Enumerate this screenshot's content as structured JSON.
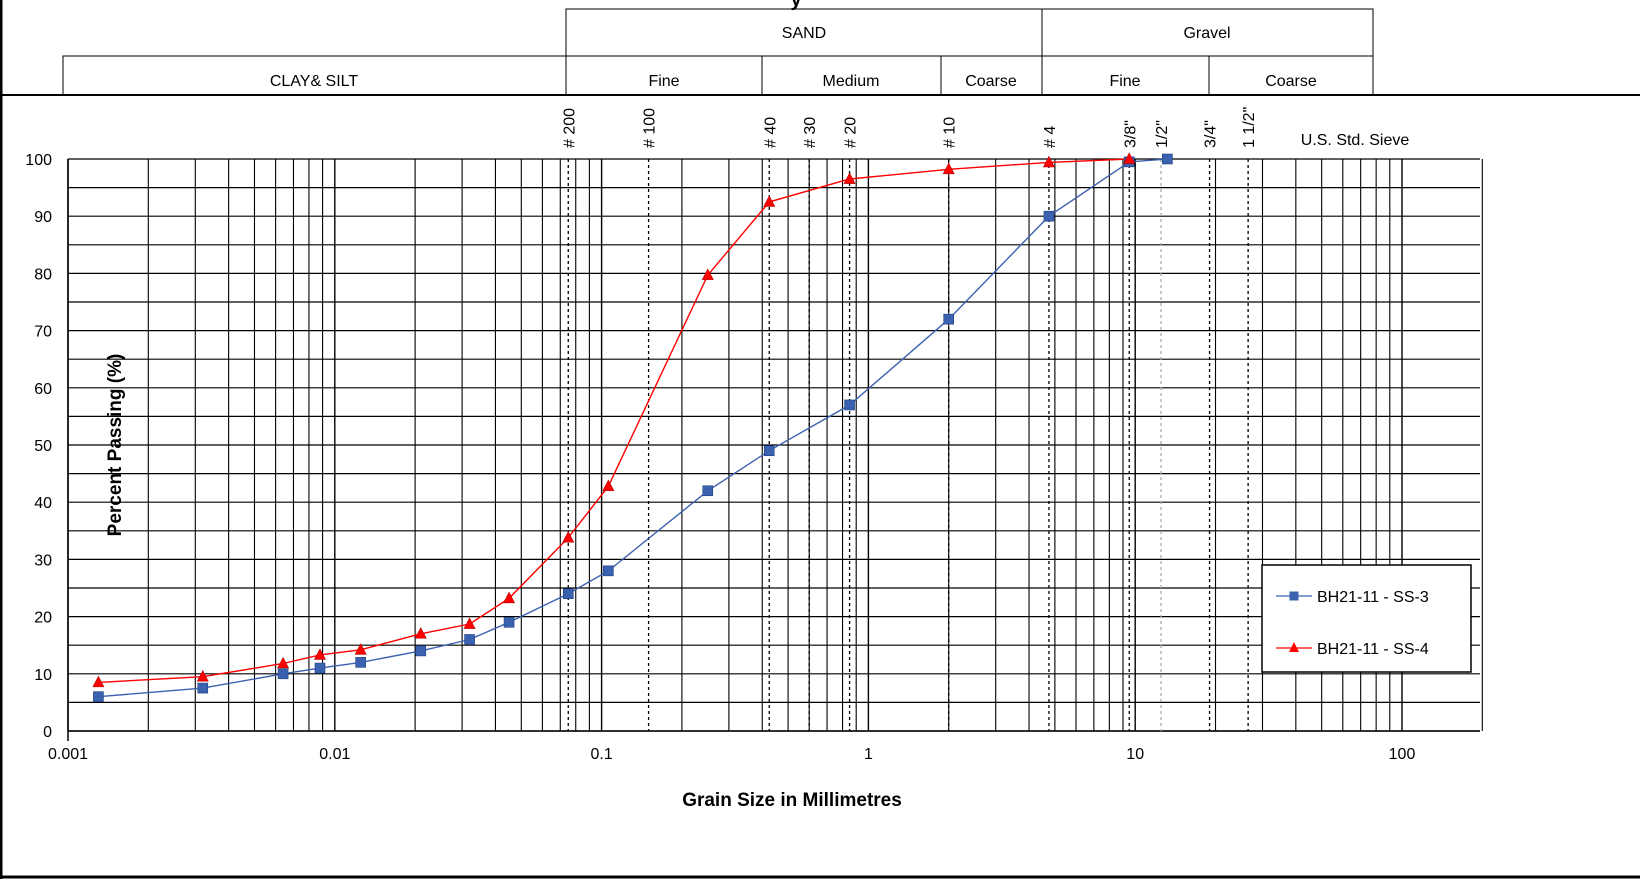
{
  "header": {
    "title_fragment": "y",
    "groups": [
      {
        "name": "sand",
        "label": "SAND"
      },
      {
        "name": "gravel",
        "label": "Gravel"
      }
    ],
    "subdivisions": [
      {
        "name": "clay-silt",
        "label": "CLAY& SILT"
      },
      {
        "name": "sand-fine",
        "label": "Fine"
      },
      {
        "name": "sand-medium",
        "label": "Medium"
      },
      {
        "name": "sand-coarse",
        "label": "Coarse"
      },
      {
        "name": "gravel-fine",
        "label": "Fine"
      },
      {
        "name": "gravel-coarse",
        "label": "Coarse"
      }
    ]
  },
  "sieve_caption": "U.S. Std. Sieve",
  "chart_data": {
    "type": "line",
    "xscale": "log",
    "xlim": [
      0.001,
      200
    ],
    "ylim": [
      0,
      100
    ],
    "xlabel": "Grain Size in Millimetres",
    "ylabel": "Percent Passing (%)",
    "x_ticks": [
      "0.001",
      "0.01",
      "0.1",
      "1",
      "10",
      "100"
    ],
    "y_ticks": [
      "0",
      "10",
      "20",
      "30",
      "40",
      "50",
      "60",
      "70",
      "80",
      "90",
      "100"
    ],
    "grid": true,
    "legend_position": "right",
    "sieves": [
      {
        "label": "# 200",
        "size": 0.075
      },
      {
        "label": "# 100",
        "size": 0.15
      },
      {
        "label": "# 40",
        "size": 0.425
      },
      {
        "label": "# 30",
        "size": 0.6
      },
      {
        "label": "# 20",
        "size": 0.85
      },
      {
        "label": "# 10",
        "size": 2.0
      },
      {
        "label": "# 4",
        "size": 4.75
      },
      {
        "label": "3/8\"",
        "size": 9.5
      },
      {
        "label": "1/2\"",
        "size": 12.5
      },
      {
        "label": "3/4\"",
        "size": 19.0
      },
      {
        "label": "1 1/2\"",
        "size": 26.5
      }
    ],
    "series": [
      {
        "name": "BH21-11 - SS-3",
        "color": "#3b62b0",
        "marker": "square",
        "x": [
          0.0013,
          0.0032,
          0.0064,
          0.0088,
          0.0125,
          0.021,
          0.032,
          0.045,
          0.075,
          0.106,
          0.25,
          0.425,
          0.85,
          2.0,
          4.75,
          9.5,
          13.2
        ],
        "y": [
          6,
          7.5,
          10,
          11,
          12,
          14,
          16,
          19,
          24,
          28,
          42,
          49,
          57,
          72,
          90,
          99.5,
          100
        ]
      },
      {
        "name": "BH21-11 - SS-4",
        "color": "#ff0000",
        "marker": "triangle",
        "x": [
          0.0013,
          0.0032,
          0.0064,
          0.0088,
          0.0125,
          0.021,
          0.032,
          0.045,
          0.075,
          0.106,
          0.25,
          0.425,
          0.85,
          2.0,
          4.75,
          9.5
        ],
        "y": [
          8.5,
          9.5,
          11.8,
          13.3,
          14.2,
          17,
          18.7,
          23.2,
          33.8,
          42.8,
          79.7,
          92.5,
          96.5,
          98.2,
          99.4,
          100
        ]
      }
    ]
  }
}
